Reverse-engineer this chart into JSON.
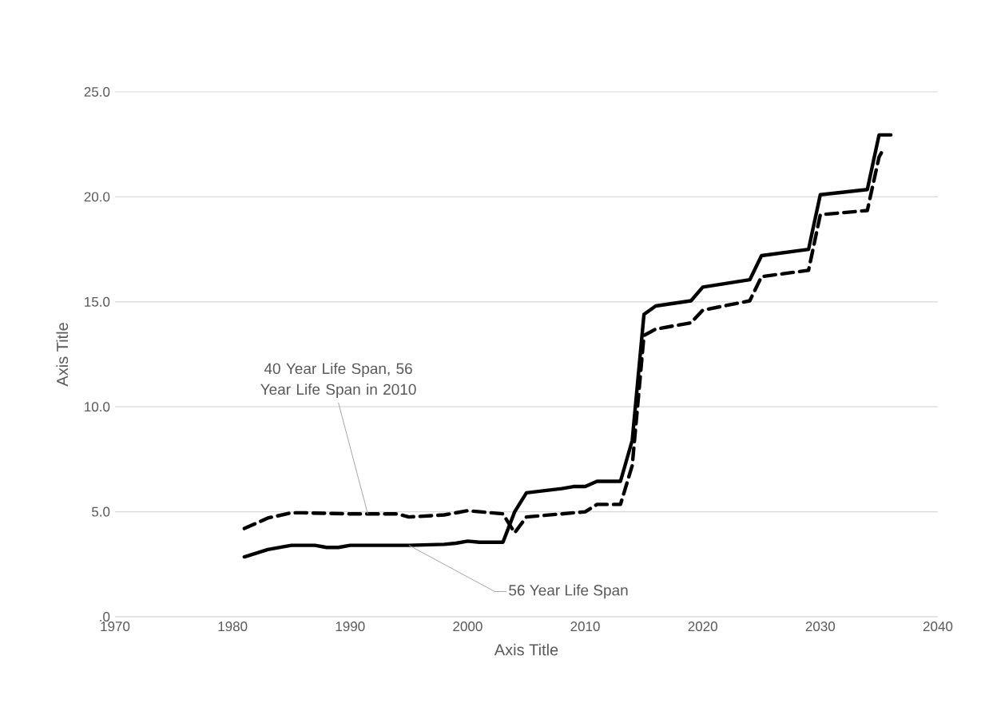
{
  "chart_data": {
    "type": "line",
    "xlabel": "Axis Title",
    "ylabel": "Axis Title",
    "xlim": [
      1970,
      2040
    ],
    "ylim": [
      0,
      25
    ],
    "xticks": [
      1970,
      1980,
      1990,
      2000,
      2010,
      2020,
      2030,
      2040
    ],
    "yticks": [
      {
        "value": 0,
        "label": ".0"
      },
      {
        "value": 5,
        "label": "5.0"
      },
      {
        "value": 10,
        "label": "10.0"
      },
      {
        "value": 15,
        "label": "15.0"
      },
      {
        "value": 20,
        "label": "20.0"
      },
      {
        "value": 25,
        "label": "25.0"
      }
    ],
    "grid": "y",
    "series": [
      {
        "color": "#000000",
        "line_style": "solid",
        "x": [
          1981,
          1983,
          1985,
          1987,
          1988,
          1989,
          1990,
          1995,
          1998,
          1999,
          2000,
          2001,
          2003,
          2004,
          2005,
          2008,
          2009,
          2010,
          2011,
          2013,
          2014,
          2015,
          2016,
          2019,
          2020,
          2024,
          2025,
          2029,
          2030,
          2034,
          2035,
          2036
        ],
        "values": [
          2.85,
          3.2,
          3.4,
          3.4,
          3.3,
          3.3,
          3.4,
          3.4,
          3.45,
          3.5,
          3.6,
          3.55,
          3.55,
          5.0,
          5.9,
          6.1,
          6.2,
          6.2,
          6.45,
          6.45,
          8.4,
          14.4,
          14.8,
          15.05,
          15.7,
          16.05,
          17.2,
          17.5,
          20.1,
          20.35,
          22.95,
          22.95
        ]
      },
      {
        "color": "#000000",
        "line_style": "dashed",
        "x": [
          1981,
          1983,
          1985,
          1986,
          1990,
          1994,
          1995,
          1998,
          2000,
          2003,
          2004,
          2005,
          2008,
          2010,
          2011,
          2013,
          2014,
          2015,
          2016,
          2019,
          2020,
          2024,
          2025,
          2029,
          2030,
          2034,
          2035,
          2035.4
        ],
        "values": [
          4.2,
          4.7,
          4.95,
          4.95,
          4.9,
          4.9,
          4.75,
          4.85,
          5.05,
          4.9,
          4.0,
          4.75,
          4.9,
          5.0,
          5.35,
          5.35,
          7.2,
          13.4,
          13.7,
          14.0,
          14.6,
          15.05,
          16.2,
          16.5,
          19.15,
          19.35,
          21.9,
          22.3
        ]
      }
    ],
    "annotations": [
      {
        "text": "40 Year Life Span, 56 Year Life Span in 2010",
        "x": 1991.5,
        "y": 4.9
      },
      {
        "text": "56 Year Life Span",
        "x": 1995,
        "y": 3.4
      }
    ]
  }
}
